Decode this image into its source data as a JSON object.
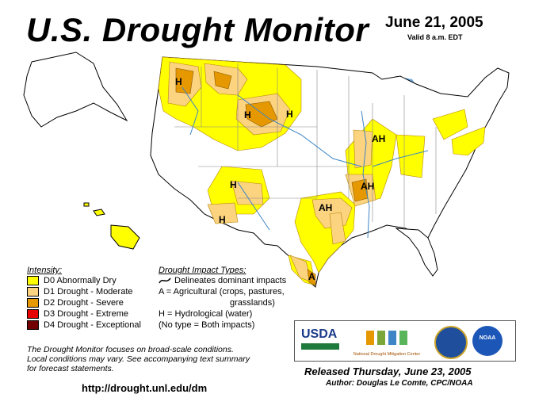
{
  "header": {
    "title": "U.S. Drought Monitor",
    "date": "June 21, 2005",
    "valid": "Valid 8 a.m. EDT"
  },
  "legend": {
    "intensity_title": "Intensity:",
    "items": [
      {
        "label": "D0 Abnormally Dry",
        "color": "#ffff00"
      },
      {
        "label": "D1 Drought - Moderate",
        "color": "#fcd37f"
      },
      {
        "label": "D2 Drought - Severe",
        "color": "#e69800"
      },
      {
        "label": "D3 Drought - Extreme",
        "color": "#e60000"
      },
      {
        "label": "D4 Drought - Exceptional",
        "color": "#730000"
      }
    ]
  },
  "impacts": {
    "title": "Drought Impact Types:",
    "line1": "Delineates dominant impacts",
    "line2": "A = Agricultural (crops, pastures,",
    "line3": "grasslands)",
    "line4": "H = Hydrological (water)",
    "line5": "(No type = Both impacts)"
  },
  "map_labels": [
    {
      "text": "H"
    },
    {
      "text": "H"
    },
    {
      "text": "H"
    },
    {
      "text": "H"
    },
    {
      "text": "H"
    },
    {
      "text": "AH"
    },
    {
      "text": "AH"
    },
    {
      "text": "AH"
    },
    {
      "text": "A"
    }
  ],
  "note": {
    "line1": "The Drought Monitor focuses on broad-scale conditions.",
    "line2": "Local conditions may vary.  See accompanying text summary",
    "line3": "for forecast statements."
  },
  "footer": {
    "url": "http://drought.unl.edu/dm",
    "released": "Released Thursday, June 23, 2005",
    "author": "Author:  Douglas Le Comte, CPC/NOAA"
  },
  "logos": {
    "usda": "USDA",
    "ndmc": "National Drought Mitigation Center",
    "noaa": "NOAA"
  }
}
